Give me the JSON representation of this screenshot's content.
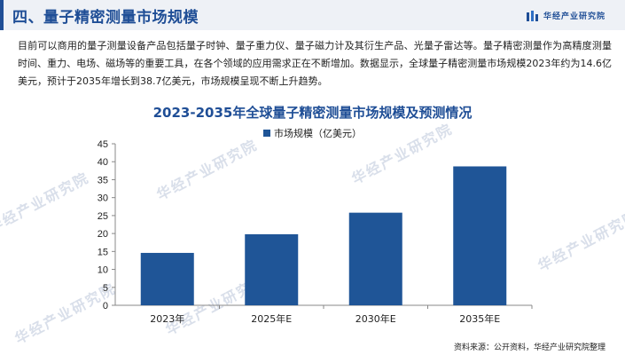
{
  "header": {
    "title": "四、量子精密测量市场规模",
    "brand": "华经产业研究院"
  },
  "paragraph": "目前可以商用的量子测量设备产品包括量子时钟、量子重力仪、量子磁力计及其衍生产品、光量子雷达等。量子精密测量作为高精度测量时间、重力、电场、磁场等的重要工具，在各个领域的应用需求正在不断增加。数据显示，全球量子精密测量市场规模2023年约为14.6亿美元，预计于2035年增长到38.7亿美元，市场规模呈现不断上升趋势。",
  "watermark": "华经产业研究院",
  "source": "资料来源：公开资料，华经产业研究院整理",
  "colors": {
    "accent": "#1f4e96",
    "bar": "#1f5597"
  },
  "chart_data": {
    "type": "bar",
    "title": "2023-2035年全球量子精密测量市场规模及预测情况",
    "categories": [
      "2023年",
      "2025年E",
      "2030年E",
      "2035年E"
    ],
    "series": [
      {
        "name": "市场规模（亿美元）",
        "values": [
          14.6,
          19.8,
          25.8,
          38.7
        ]
      }
    ],
    "ylim": [
      0,
      45
    ],
    "yticks": [
      0,
      5,
      10,
      15,
      20,
      25,
      30,
      35,
      40,
      45
    ],
    "grid": false,
    "legend": "top-center"
  }
}
